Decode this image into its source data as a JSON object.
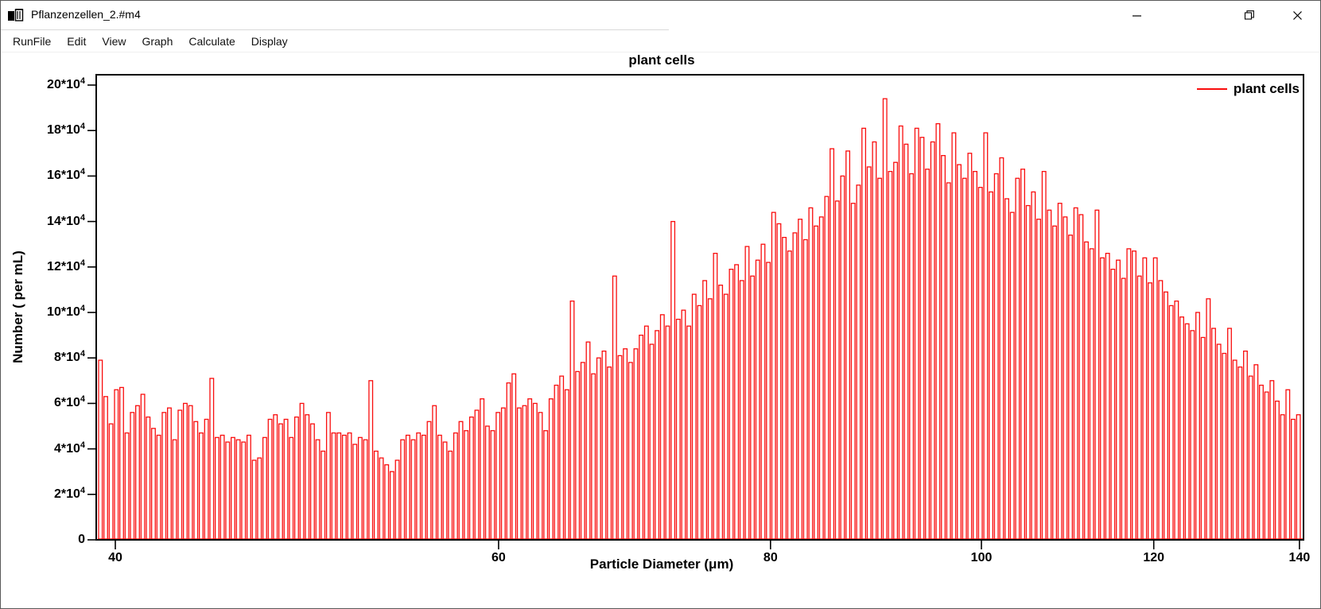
{
  "window": {
    "title": "Pflanzenzellen_2.#m4",
    "controls": {
      "minimize": "minimize",
      "restore": "restore",
      "close": "close"
    }
  },
  "menu": {
    "items": [
      "RunFile",
      "Edit",
      "View",
      "Graph",
      "Calculate",
      "Display"
    ]
  },
  "colors": {
    "bar_outline": "#f90d0d",
    "bar_fill": "#ffffff",
    "axis": "#000000",
    "text": "#000000",
    "legend_line": "#f90d0d"
  },
  "chart_data": {
    "type": "bar",
    "title": "plant cells",
    "xlabel": "Particle Diameter (μm)",
    "ylabel": "Number ( per mL)",
    "legend": [
      {
        "label": "plant cells",
        "color": "#f90d0d"
      }
    ],
    "legend_position": "top-right",
    "grid": false,
    "x_scale": "log",
    "xlim": [
      39.2,
      140.6
    ],
    "ylim": [
      0,
      200000
    ],
    "x_ticks": [
      40,
      60,
      80,
      100,
      120,
      140
    ],
    "y_tick_values": [
      0,
      20000,
      40000,
      60000,
      80000,
      100000,
      120000,
      140000,
      160000,
      180000,
      200000
    ],
    "y_tick_labels": [
      "0",
      "2*10^4",
      "4*10^4",
      "6*10^4",
      "8*10^4",
      "10*10^4",
      "12*10^4",
      "14*10^4",
      "16*10^4",
      "18*10^4",
      "20*10^4"
    ],
    "bars": {
      "count": 227,
      "diameter_min_um": 39.3,
      "diameter_max_um": 140.1,
      "spacing": "log-uniform",
      "value_unit": 10000,
      "values_x10k": [
        7.9,
        6.3,
        5.1,
        6.6,
        6.7,
        4.7,
        5.6,
        5.9,
        6.4,
        5.4,
        4.9,
        4.6,
        5.6,
        5.8,
        4.4,
        5.7,
        6.0,
        5.9,
        5.2,
        4.7,
        5.3,
        7.1,
        4.5,
        4.6,
        4.3,
        4.5,
        4.4,
        4.3,
        4.6,
        3.5,
        3.6,
        4.5,
        5.3,
        5.5,
        5.1,
        5.3,
        4.5,
        5.4,
        6.0,
        5.5,
        5.1,
        4.4,
        3.9,
        5.6,
        4.7,
        4.7,
        4.6,
        4.7,
        4.2,
        4.5,
        4.4,
        7.0,
        3.9,
        3.6,
        3.3,
        3.0,
        3.5,
        4.4,
        4.6,
        4.4,
        4.7,
        4.6,
        5.2,
        5.9,
        4.6,
        4.3,
        3.9,
        4.7,
        5.2,
        4.8,
        5.4,
        5.7,
        6.2,
        5.0,
        4.8,
        5.6,
        5.8,
        6.9,
        7.3,
        5.8,
        5.9,
        6.2,
        6.0,
        5.6,
        4.8,
        6.2,
        6.8,
        7.2,
        6.6,
        10.5,
        7.4,
        7.8,
        8.7,
        7.3,
        8.0,
        8.3,
        7.6,
        11.6,
        8.1,
        8.4,
        7.8,
        8.4,
        9.0,
        9.4,
        8.6,
        9.2,
        9.9,
        9.4,
        14.0,
        9.7,
        10.1,
        9.4,
        10.8,
        10.3,
        11.4,
        10.6,
        12.6,
        11.2,
        10.8,
        11.9,
        12.1,
        11.4,
        12.9,
        11.6,
        12.3,
        13.0,
        12.2,
        14.4,
        13.9,
        13.3,
        12.7,
        13.5,
        14.1,
        13.2,
        14.6,
        13.8,
        14.2,
        15.1,
        17.2,
        14.9,
        16.0,
        17.1,
        14.8,
        15.6,
        18.1,
        16.4,
        17.5,
        15.9,
        19.4,
        16.2,
        16.6,
        18.2,
        17.4,
        16.1,
        18.1,
        17.7,
        16.3,
        17.5,
        18.3,
        16.9,
        15.7,
        17.9,
        16.5,
        15.9,
        17.0,
        16.2,
        15.5,
        17.9,
        15.3,
        16.1,
        16.8,
        15.0,
        14.4,
        15.9,
        16.3,
        14.7,
        15.3,
        14.1,
        16.2,
        14.5,
        13.8,
        14.8,
        14.2,
        13.4,
        14.6,
        14.3,
        13.1,
        12.8,
        14.5,
        12.4,
        12.6,
        11.9,
        12.3,
        11.5,
        12.8,
        12.7,
        11.6,
        12.4,
        11.3,
        12.4,
        11.4,
        10.9,
        10.3,
        10.5,
        9.8,
        9.5,
        9.2,
        10.0,
        8.9,
        10.6,
        9.3,
        8.6,
        8.2,
        9.3,
        7.9,
        7.6,
        8.3,
        7.2,
        7.7,
        6.8,
        6.5,
        7.0,
        6.1,
        5.5,
        6.6,
        5.3,
        5.5
      ]
    }
  }
}
